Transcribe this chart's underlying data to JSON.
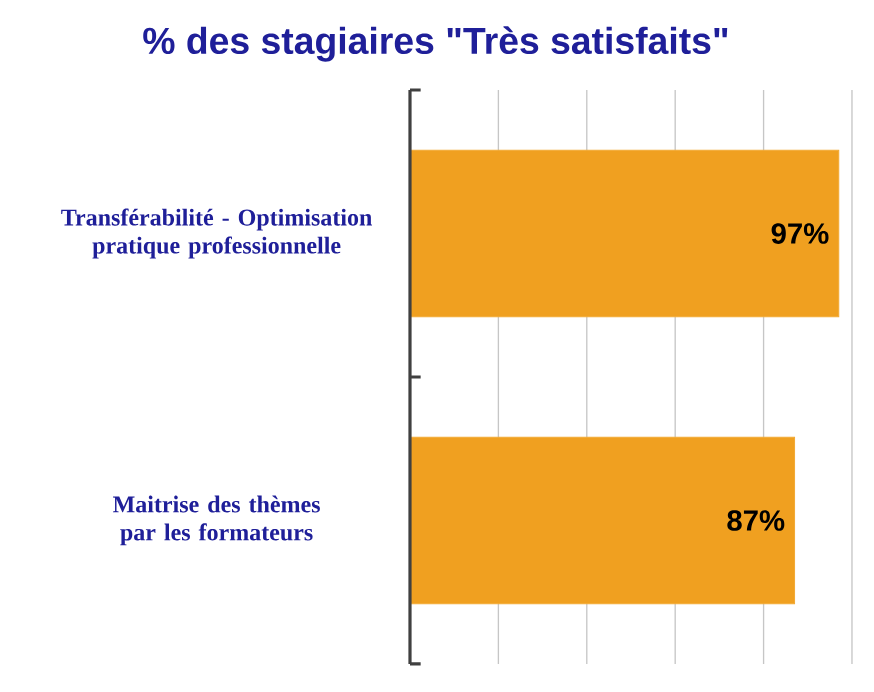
{
  "chart_data": {
    "type": "bar",
    "orientation": "horizontal",
    "title": "% des stagiaires \"Très satisfaits\"",
    "categories": [
      "Transférabilité - Optimisation pratique professionnelle",
      "Maitrise des thèmes par les formateurs"
    ],
    "values": [
      97,
      87
    ],
    "color": "#f0a020",
    "value_labels": [
      "97%",
      "87%"
    ],
    "xlim": [
      0,
      100
    ],
    "xticks": [
      {
        "value": 0,
        "label": null
      },
      {
        "value": 20,
        "label": null
      },
      {
        "value": 40,
        "label": null
      },
      {
        "value": 60,
        "label": null
      },
      {
        "value": 80,
        "label": null
      },
      {
        "value": 100,
        "label": null
      }
    ],
    "grid": "x",
    "tick_labels": "y"
  }
}
